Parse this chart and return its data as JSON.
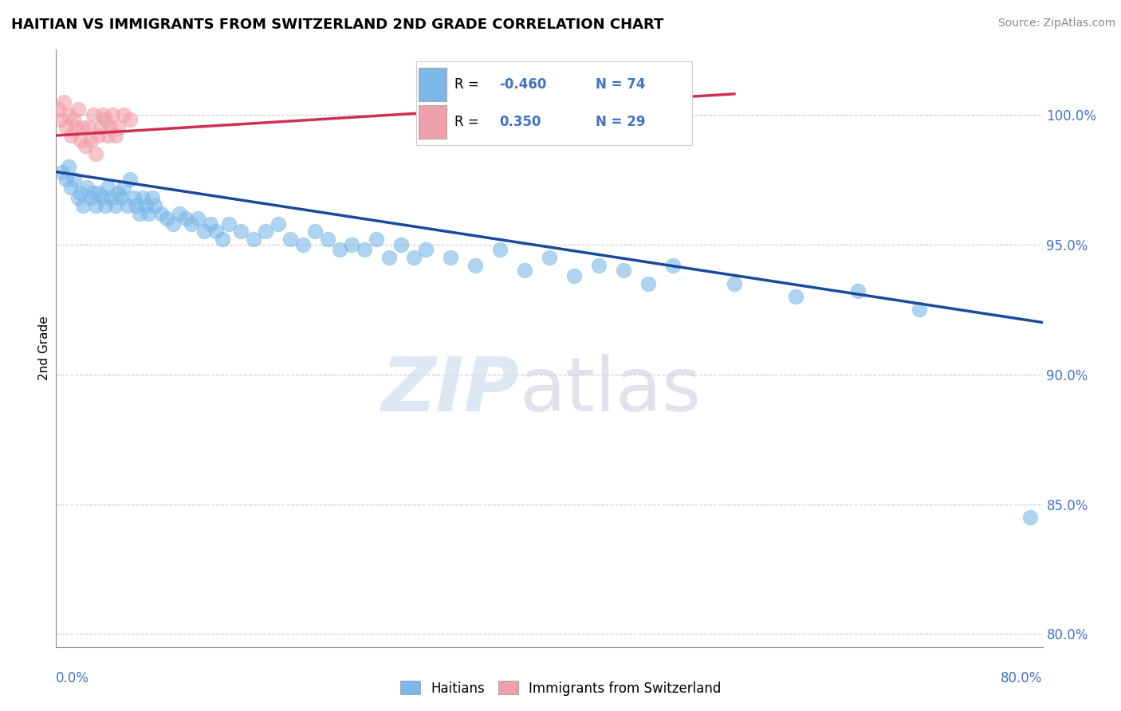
{
  "title": "HAITIAN VS IMMIGRANTS FROM SWITZERLAND 2ND GRADE CORRELATION CHART",
  "source": "Source: ZipAtlas.com",
  "ylabel": "2nd Grade",
  "yticks": [
    80.0,
    85.0,
    90.0,
    95.0,
    100.0
  ],
  "xlim": [
    0.0,
    80.0
  ],
  "ylim": [
    79.5,
    102.5
  ],
  "blue_R": -0.46,
  "blue_N": 74,
  "pink_R": 0.35,
  "pink_N": 29,
  "blue_color": "#7ab8e8",
  "pink_color": "#f0a0aa",
  "blue_line_color": "#1a4a9a",
  "pink_line_color": "#d03050",
  "legend_blue_label": "Haitians",
  "legend_pink_label": "Immigrants from Switzerland",
  "blue_trend_x": [
    0,
    80
  ],
  "blue_trend_y": [
    97.8,
    92.0
  ],
  "pink_trend_x": [
    0,
    55
  ],
  "pink_trend_y": [
    99.2,
    100.8
  ],
  "blue_scatter_x": [
    0.5,
    0.8,
    1.0,
    1.2,
    1.5,
    1.8,
    2.0,
    2.2,
    2.5,
    2.8,
    3.0,
    3.2,
    3.5,
    3.8,
    4.0,
    4.2,
    4.5,
    4.8,
    5.0,
    5.3,
    5.5,
    5.8,
    6.0,
    6.3,
    6.5,
    6.8,
    7.0,
    7.3,
    7.5,
    7.8,
    8.0,
    8.5,
    9.0,
    9.5,
    10.0,
    10.5,
    11.0,
    11.5,
    12.0,
    12.5,
    13.0,
    13.5,
    14.0,
    15.0,
    16.0,
    17.0,
    18.0,
    19.0,
    20.0,
    21.0,
    22.0,
    23.0,
    24.0,
    25.0,
    26.0,
    27.0,
    28.0,
    29.0,
    30.0,
    32.0,
    34.0,
    36.0,
    38.0,
    40.0,
    42.0,
    44.0,
    46.0,
    48.0,
    50.0,
    55.0,
    60.0,
    65.0,
    70.0,
    79.0
  ],
  "blue_scatter_y": [
    97.8,
    97.5,
    98.0,
    97.2,
    97.5,
    96.8,
    97.0,
    96.5,
    97.2,
    96.8,
    97.0,
    96.5,
    97.0,
    96.8,
    96.5,
    97.2,
    96.8,
    96.5,
    97.0,
    96.8,
    97.2,
    96.5,
    97.5,
    96.8,
    96.5,
    96.2,
    96.8,
    96.5,
    96.2,
    96.8,
    96.5,
    96.2,
    96.0,
    95.8,
    96.2,
    96.0,
    95.8,
    96.0,
    95.5,
    95.8,
    95.5,
    95.2,
    95.8,
    95.5,
    95.2,
    95.5,
    95.8,
    95.2,
    95.0,
    95.5,
    95.2,
    94.8,
    95.0,
    94.8,
    95.2,
    94.5,
    95.0,
    94.5,
    94.8,
    94.5,
    94.2,
    94.8,
    94.0,
    94.5,
    93.8,
    94.2,
    94.0,
    93.5,
    94.2,
    93.5,
    93.0,
    93.2,
    92.5,
    84.5
  ],
  "pink_scatter_x": [
    0.2,
    0.4,
    0.6,
    0.8,
    1.0,
    1.2,
    1.4,
    1.6,
    1.8,
    2.0,
    2.2,
    2.4,
    2.6,
    2.8,
    3.0,
    3.2,
    3.4,
    3.6,
    3.8,
    4.0,
    4.2,
    4.4,
    4.6,
    4.8,
    5.0,
    5.5,
    6.0,
    30.0,
    50.0
  ],
  "pink_scatter_y": [
    100.2,
    99.8,
    100.5,
    99.5,
    100.0,
    99.2,
    99.8,
    99.5,
    100.2,
    99.0,
    99.5,
    98.8,
    99.5,
    99.0,
    100.0,
    98.5,
    99.2,
    99.5,
    100.0,
    99.8,
    99.2,
    99.5,
    100.0,
    99.2,
    99.5,
    100.0,
    99.8,
    99.8,
    101.0
  ]
}
